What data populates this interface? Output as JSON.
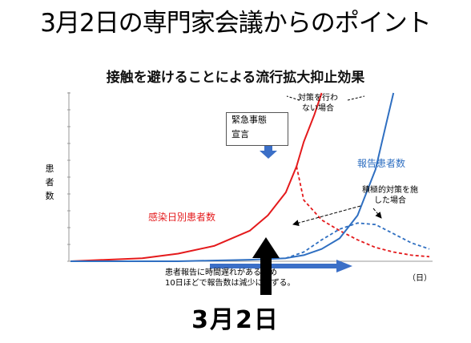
{
  "slide_title": "3月2日の専門家会議からのポイント",
  "bottom_label": "3月2日",
  "chart_data": {
    "type": "line",
    "title": "接触を避けることによる流行拡大抑止効果",
    "ylabel": "患者数",
    "xunit": "（日）",
    "annotations": {
      "emergency_line1": "緊急事態",
      "emergency_line2": "宣言",
      "no_measures_line1": "対策を行わ",
      "no_measures_line2": "ない場合",
      "proactive_line1": "積極的対策を施",
      "proactive_line2": "した場合",
      "delay_note_line1": "患者報告に時間遅れがあるため",
      "delay_note_line2": "10日ほどで報告数は減少に転ずる。"
    },
    "series": [
      {
        "name": "感染日別患者数",
        "color": "#e41a1c",
        "style": "solid",
        "x": [
          0,
          10,
          20,
          30,
          40,
          50,
          55,
          60,
          63,
          65,
          68,
          70
        ],
        "y": [
          0,
          1,
          2,
          5,
          10,
          20,
          30,
          45,
          62,
          78,
          96,
          110
        ]
      },
      {
        "name": "",
        "color": "#e41a1c",
        "style": "dashed",
        "x": [
          63,
          65,
          70,
          75,
          80,
          85,
          90,
          95,
          100
        ],
        "y": [
          62,
          40,
          27,
          20,
          14,
          9,
          6,
          4,
          3
        ]
      },
      {
        "name": "報告患者数",
        "color": "#2f6fc1",
        "style": "solid",
        "x": [
          0,
          30,
          50,
          60,
          65,
          70,
          75,
          80,
          85,
          88,
          90
        ],
        "y": [
          0,
          0,
          1,
          2,
          4,
          8,
          15,
          30,
          60,
          90,
          110
        ]
      },
      {
        "name": "",
        "color": "#2f6fc1",
        "style": "dashed",
        "x": [
          60,
          65,
          70,
          75,
          80,
          85,
          90,
          95,
          100
        ],
        "y": [
          2,
          6,
          14,
          21,
          25,
          24,
          18,
          12,
          8
        ]
      }
    ],
    "xlim": [
      0,
      100
    ],
    "ylim": [
      0,
      110
    ]
  }
}
